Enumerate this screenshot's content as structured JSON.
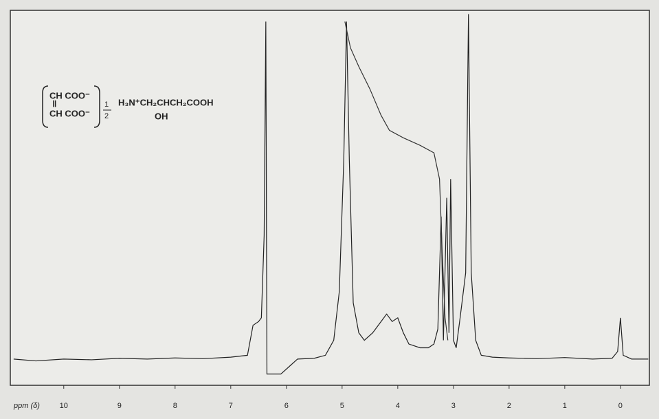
{
  "chart_data": {
    "type": "line",
    "x_label": "ppm (δ)",
    "xlim": [
      10.96,
      -0.52
    ],
    "xticks": [
      10,
      9,
      8,
      7,
      6,
      5,
      4,
      3,
      2,
      1,
      0
    ],
    "ylim": [
      0,
      100
    ],
    "annotations": [
      "CH COO⁻",
      "‖",
      "CH COO⁻",
      "1",
      "2",
      "H₃N⁺CH₂CHCH₂COOH",
      "OH"
    ],
    "series": [
      {
        "color": "#222222",
        "x": [
          10.9,
          10.5,
          10,
          9.5,
          9,
          8.5,
          8,
          7.5,
          7,
          6.7,
          6.6,
          6.5,
          6.45,
          6.4,
          6.37,
          6.35,
          6.1,
          5.95,
          5.8,
          5.5,
          5.3,
          5.15,
          5.05,
          4.97,
          4.92,
          4.87,
          4.8,
          4.7,
          4.6,
          4.45,
          4.3,
          4.2,
          4.1,
          4.0,
          3.9,
          3.8,
          3.6,
          3.45,
          3.35,
          3.28,
          3.22,
          3.18,
          3.12,
          3.08,
          3.05,
          3.0,
          2.95,
          2.88,
          2.78,
          2.73,
          2.68,
          2.6,
          2.5,
          2.3,
          2,
          1.5,
          1,
          0.5,
          0.15,
          0.05,
          0.0,
          -0.05,
          -0.2,
          -0.5
        ],
        "values": [
          7,
          6.5,
          7,
          6.8,
          7.2,
          7,
          7.3,
          7.1,
          7.5,
          8,
          16,
          17,
          18,
          40,
          97,
          3,
          3,
          5,
          7,
          7.2,
          8,
          12,
          25,
          60,
          97,
          60,
          22,
          14,
          12,
          14,
          17,
          19,
          17,
          18,
          14,
          11,
          10,
          10,
          11,
          15,
          45,
          12,
          50,
          14,
          55,
          12,
          10,
          18,
          30,
          99,
          30,
          12,
          8,
          7.5,
          7.3,
          7.1,
          7.4,
          7,
          7.2,
          9,
          18,
          8,
          7,
          7
        ]
      },
      {
        "color": "#333333",
        "x": [
          4.95,
          4.85,
          4.7,
          4.5,
          4.3,
          4.15,
          3.9,
          3.6,
          3.35,
          3.25,
          3.2,
          3.15,
          3.1
        ],
        "values": [
          97,
          90,
          85,
          79,
          72,
          68,
          66,
          64,
          62,
          55,
          35,
          18,
          12
        ]
      }
    ]
  }
}
